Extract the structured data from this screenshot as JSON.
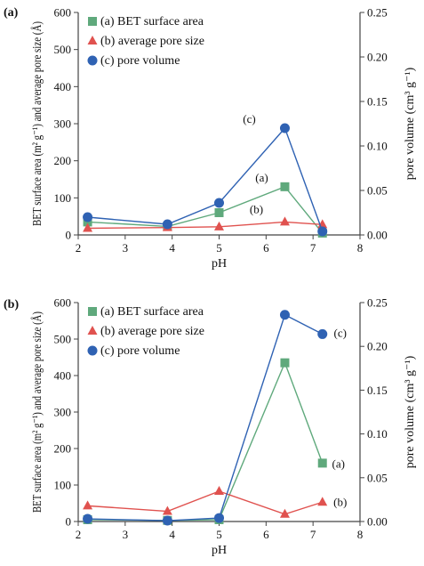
{
  "chart_data": [
    {
      "type": "line",
      "panel_label": "(a)",
      "xlabel": "pH",
      "ylabel": "BET surface area (m² g⁻¹) and average pore size (Å)",
      "y2label": "pore volume (cm³ g⁻¹)",
      "xlim": [
        2,
        8
      ],
      "ylim": [
        0,
        600
      ],
      "y2lim": [
        0,
        0.25
      ],
      "xticks": [
        "2",
        "3",
        "4",
        "5",
        "6",
        "7",
        "8"
      ],
      "yticks": [
        "0",
        "100",
        "200",
        "300",
        "400",
        "500",
        "600"
      ],
      "y2ticks": [
        "0.00",
        "0.05",
        "0.10",
        "0.15",
        "0.20",
        "0.25"
      ],
      "x": [
        2.2,
        3.9,
        5.0,
        6.4,
        7.2
      ],
      "series": [
        {
          "name": "(a) BET surface area",
          "axis": "left",
          "color": "#5fa97c",
          "marker": "square",
          "values": [
            35,
            23,
            60,
            130,
            5
          ],
          "label": "(a)"
        },
        {
          "name": "(b) average pore size",
          "axis": "left",
          "color": "#e0524f",
          "marker": "triangle",
          "values": [
            18,
            20,
            22,
            35,
            28
          ],
          "label": "(b)"
        },
        {
          "name": "(c) pore volume",
          "axis": "right",
          "color": "#2f62b3",
          "marker": "circle",
          "values": [
            0.02,
            0.012,
            0.036,
            0.12,
            0.004
          ],
          "label": "(c)"
        }
      ],
      "legend": "top-left"
    },
    {
      "type": "line",
      "panel_label": "(b)",
      "xlabel": "pH",
      "ylabel": "BET surface area (m² g⁻¹) and average pore size (Å)",
      "y2label": "pore volume (cm³ g⁻¹)",
      "xlim": [
        2,
        8
      ],
      "ylim": [
        0,
        600
      ],
      "y2lim": [
        0,
        0.25
      ],
      "xticks": [
        "2",
        "3",
        "4",
        "5",
        "6",
        "7",
        "8"
      ],
      "yticks": [
        "0",
        "100",
        "200",
        "300",
        "400",
        "500",
        "600"
      ],
      "y2ticks": [
        "0.00",
        "0.05",
        "0.10",
        "0.15",
        "0.20",
        "0.25"
      ],
      "x": [
        2.2,
        3.9,
        5.0,
        6.4,
        7.2
      ],
      "series": [
        {
          "name": "(a) BET surface area",
          "axis": "left",
          "color": "#5fa97c",
          "marker": "square",
          "values": [
            5,
            3,
            5,
            435,
            160
          ],
          "label": "(a)"
        },
        {
          "name": "(b) average pore size",
          "axis": "left",
          "color": "#e0524f",
          "marker": "triangle",
          "values": [
            43,
            28,
            83,
            20,
            53
          ],
          "label": "(b)"
        },
        {
          "name": "(c) pore volume",
          "axis": "right",
          "color": "#2f62b3",
          "marker": "circle",
          "values": [
            0.003,
            0.001,
            0.004,
            0.236,
            0.214
          ],
          "label": "(c)"
        }
      ],
      "legend": "top-left"
    }
  ]
}
